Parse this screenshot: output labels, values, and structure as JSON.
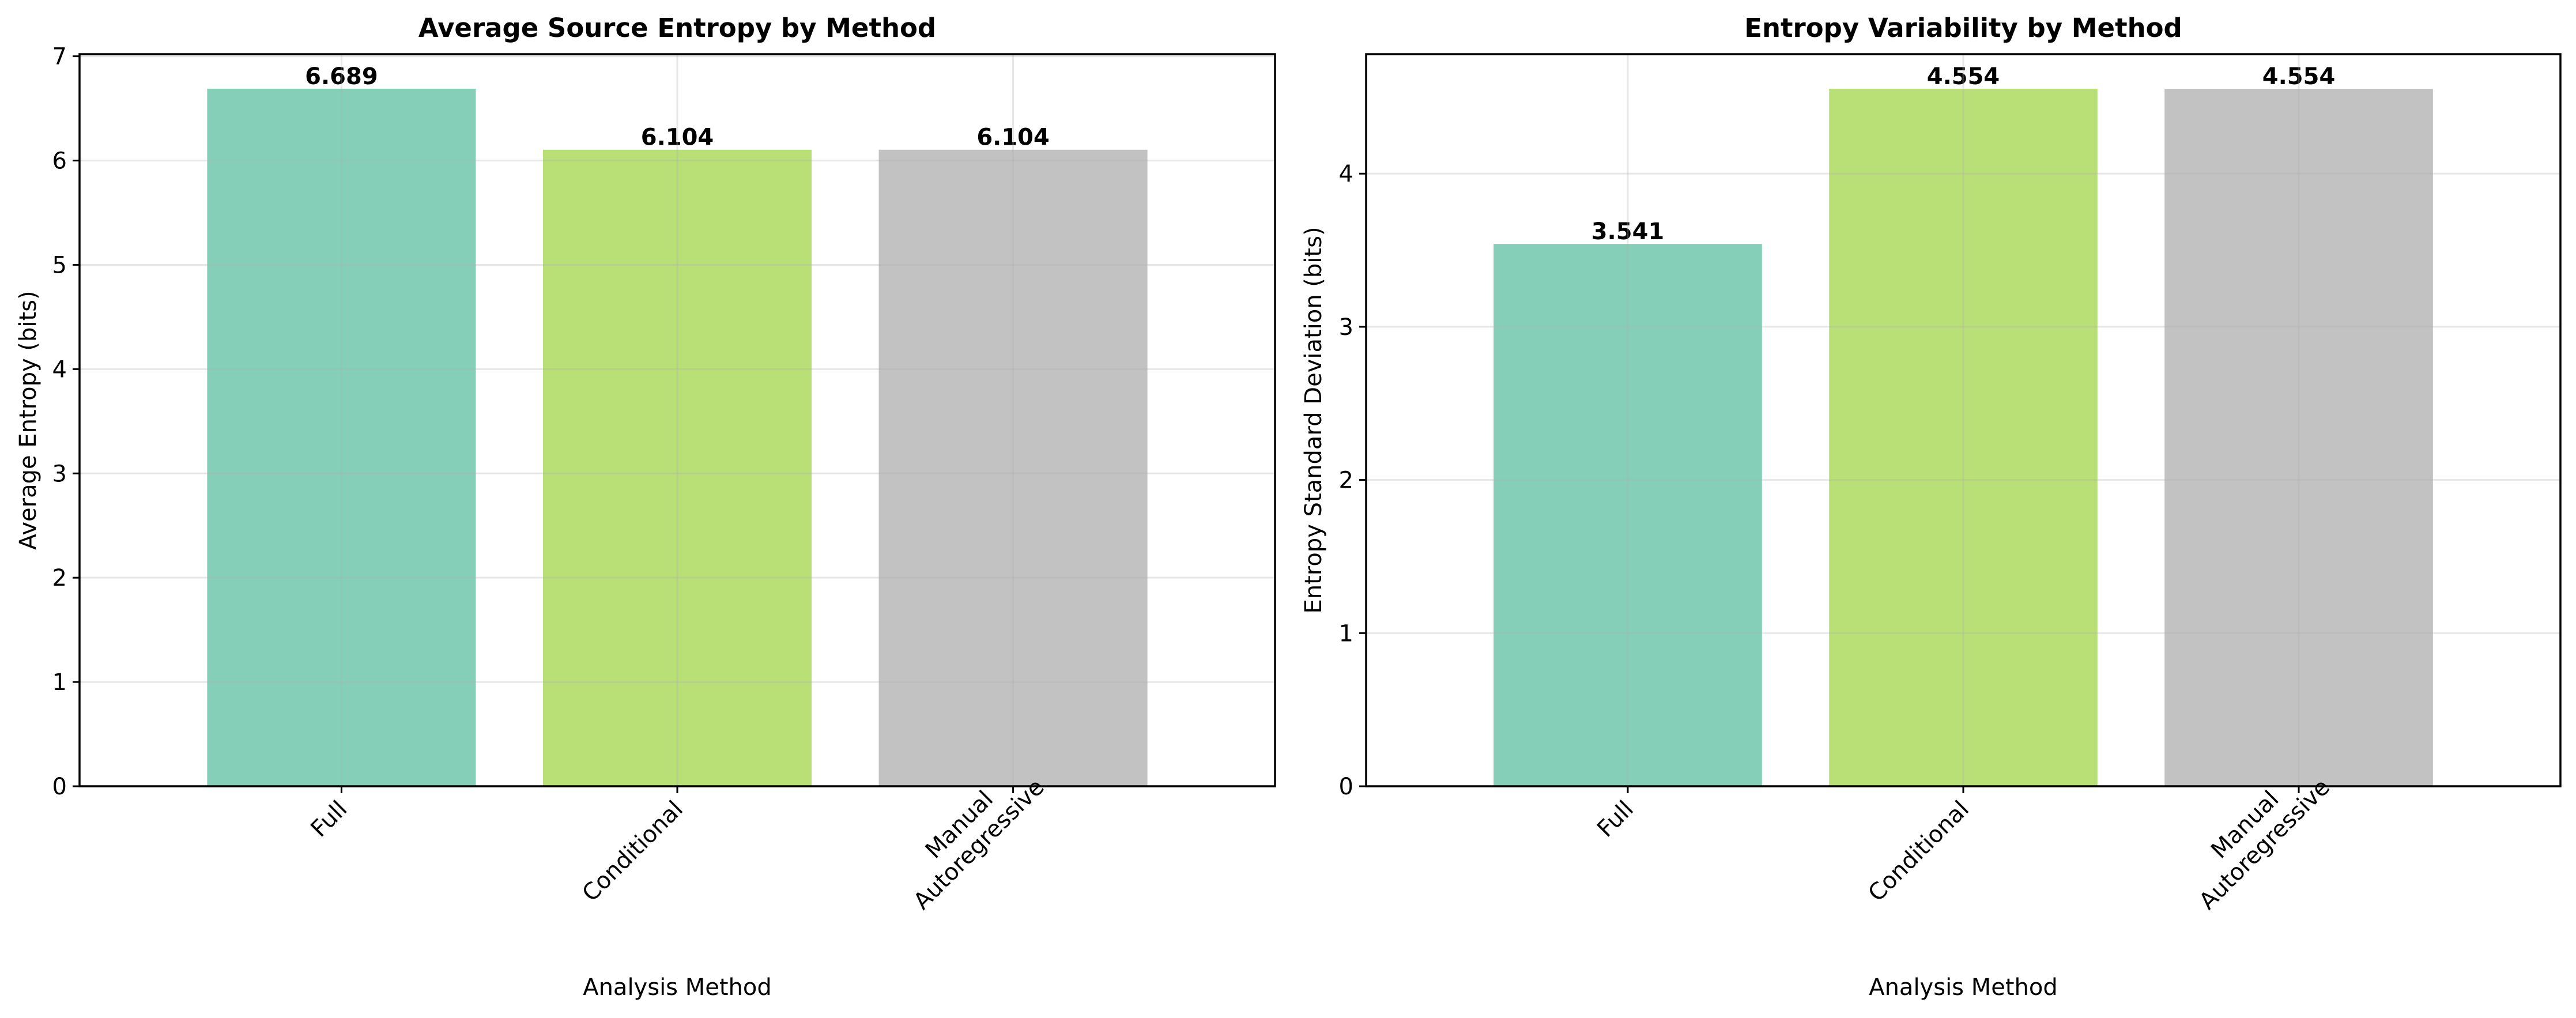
{
  "chart_data": [
    {
      "type": "bar",
      "title": "Average Source Entropy by Method",
      "xlabel": "Analysis Method",
      "ylabel": "Average Entropy (bits)",
      "categories": [
        "Full",
        "Conditional",
        "Manual\nAutoregressive"
      ],
      "values": [
        6.689,
        6.104,
        6.104
      ],
      "value_labels": [
        "6.689",
        "6.104",
        "6.104"
      ],
      "colors": [
        "#66c2a5",
        "#a6d854",
        "#b3b3b3"
      ],
      "ylim": [
        0,
        7.02
      ],
      "yticks": [
        0,
        1,
        2,
        3,
        4,
        5,
        6,
        7
      ],
      "grid": true
    },
    {
      "type": "bar",
      "title": "Entropy Variability by Method",
      "xlabel": "Analysis Method",
      "ylabel": "Entropy Standard Deviation (bits)",
      "categories": [
        "Full",
        "Conditional",
        "Manual\nAutoregressive"
      ],
      "values": [
        3.541,
        4.554,
        4.554
      ],
      "value_labels": [
        "3.541",
        "4.554",
        "4.554"
      ],
      "colors": [
        "#66c2a5",
        "#a6d854",
        "#b3b3b3"
      ],
      "ylim": [
        0,
        4.78
      ],
      "yticks": [
        0,
        1,
        2,
        3,
        4
      ],
      "grid": true
    }
  ]
}
